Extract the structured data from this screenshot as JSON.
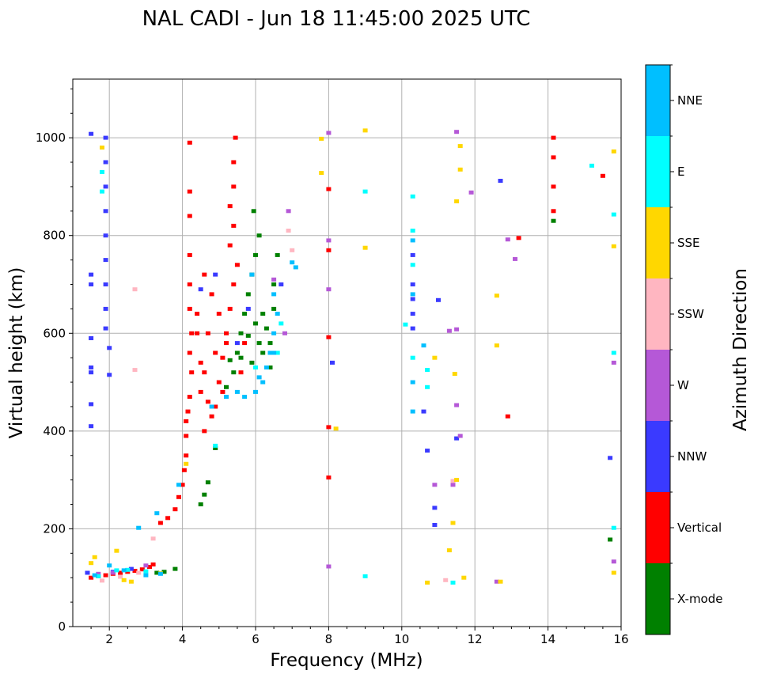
{
  "chart_data": {
    "type": "scatter",
    "title": "NAL CADI - Jun 18 11:45:00 2025 UTC",
    "xlabel": "Frequency (MHz)",
    "ylabel": "Virtual height (km)",
    "xlim": [
      1,
      16
    ],
    "ylim": [
      0,
      1120
    ],
    "xticks": [
      2,
      4,
      6,
      8,
      10,
      12,
      14,
      16
    ],
    "yticks": [
      0,
      200,
      400,
      600,
      800,
      1000
    ],
    "grid": true,
    "colorbar": {
      "label": "Azimuth Direction",
      "categories": [
        {
          "name": "X-mode",
          "color": "#008000"
        },
        {
          "name": "Vertical",
          "color": "#ff0000"
        },
        {
          "name": "NNW",
          "color": "#3a3aff"
        },
        {
          "name": "W",
          "color": "#b558d7"
        },
        {
          "name": "SSW",
          "color": "#ffb6c1"
        },
        {
          "name": "SSE",
          "color": "#ffd700"
        },
        {
          "name": "E",
          "color": "#00ffff"
        },
        {
          "name": "NNE",
          "color": "#00bfff"
        }
      ]
    },
    "series": [
      {
        "name": "X-mode",
        "points": [
          [
            3.3,
            110
          ],
          [
            3.5,
            112
          ],
          [
            3.8,
            118
          ],
          [
            4.5,
            250
          ],
          [
            4.6,
            270
          ],
          [
            4.7,
            295
          ],
          [
            4.9,
            365
          ],
          [
            5.2,
            490
          ],
          [
            5.4,
            520
          ],
          [
            5.5,
            560
          ],
          [
            5.6,
            600
          ],
          [
            5.7,
            640
          ],
          [
            5.8,
            680
          ],
          [
            5.9,
            720
          ],
          [
            6.0,
            760
          ],
          [
            6.1,
            800
          ],
          [
            6.2,
            640
          ],
          [
            6.3,
            610
          ],
          [
            6.4,
            580
          ],
          [
            6.5,
            700
          ],
          [
            6.6,
            760
          ],
          [
            5.9,
            540
          ],
          [
            6.1,
            580
          ],
          [
            5.3,
            545
          ],
          [
            5.6,
            550
          ],
          [
            5.8,
            595
          ],
          [
            6.0,
            620
          ],
          [
            6.2,
            560
          ],
          [
            6.5,
            650
          ],
          [
            6.4,
            530
          ],
          [
            5.95,
            850
          ],
          [
            14.15,
            830
          ],
          [
            15.7,
            178
          ]
        ]
      },
      {
        "name": "Vertical",
        "points": [
          [
            1.5,
            100
          ],
          [
            1.7,
            103
          ],
          [
            1.9,
            105
          ],
          [
            2.1,
            108
          ],
          [
            2.3,
            110
          ],
          [
            2.5,
            112
          ],
          [
            2.7,
            114
          ],
          [
            2.9,
            117
          ],
          [
            3.1,
            122
          ],
          [
            3.2,
            127
          ],
          [
            3.4,
            212
          ],
          [
            3.6,
            222
          ],
          [
            3.8,
            240
          ],
          [
            3.9,
            265
          ],
          [
            4.0,
            290
          ],
          [
            4.05,
            320
          ],
          [
            4.1,
            350
          ],
          [
            4.1,
            390
          ],
          [
            4.1,
            420
          ],
          [
            4.15,
            440
          ],
          [
            4.2,
            470
          ],
          [
            4.25,
            520
          ],
          [
            4.2,
            560
          ],
          [
            4.25,
            600
          ],
          [
            4.2,
            650
          ],
          [
            4.2,
            700
          ],
          [
            4.2,
            760
          ],
          [
            4.2,
            840
          ],
          [
            4.2,
            890
          ],
          [
            4.2,
            990
          ],
          [
            4.4,
            600
          ],
          [
            4.5,
            480
          ],
          [
            4.6,
            520
          ],
          [
            4.7,
            460
          ],
          [
            4.8,
            430
          ],
          [
            4.9,
            450
          ],
          [
            5.0,
            500
          ],
          [
            5.1,
            550
          ],
          [
            5.2,
            600
          ],
          [
            5.3,
            650
          ],
          [
            5.4,
            700
          ],
          [
            5.5,
            740
          ],
          [
            5.3,
            780
          ],
          [
            5.4,
            820
          ],
          [
            5.3,
            860
          ],
          [
            5.4,
            900
          ],
          [
            5.4,
            950
          ],
          [
            5.45,
            1000
          ],
          [
            4.6,
            720
          ],
          [
            4.8,
            680
          ],
          [
            5.0,
            640
          ],
          [
            5.2,
            580
          ],
          [
            4.9,
            560
          ],
          [
            5.1,
            480
          ],
          [
            4.5,
            540
          ],
          [
            4.4,
            640
          ],
          [
            4.7,
            600
          ],
          [
            5.6,
            520
          ],
          [
            5.7,
            580
          ],
          [
            4.6,
            400
          ],
          [
            8.0,
            305
          ],
          [
            8.0,
            408
          ],
          [
            8.0,
            592
          ],
          [
            8.0,
            895
          ],
          [
            8.0,
            770
          ],
          [
            12.9,
            430
          ],
          [
            13.2,
            795
          ],
          [
            14.15,
            850
          ],
          [
            14.15,
            900
          ],
          [
            14.15,
            960
          ],
          [
            14.15,
            1000
          ],
          [
            15.5,
            922
          ]
        ]
      },
      {
        "name": "NNW",
        "points": [
          [
            1.5,
            1008
          ],
          [
            1.5,
            720
          ],
          [
            1.5,
            700
          ],
          [
            1.5,
            590
          ],
          [
            1.5,
            530
          ],
          [
            1.5,
            520
          ],
          [
            1.5,
            455
          ],
          [
            1.5,
            410
          ],
          [
            1.9,
            1000
          ],
          [
            1.9,
            950
          ],
          [
            1.9,
            900
          ],
          [
            1.9,
            850
          ],
          [
            1.9,
            800
          ],
          [
            1.9,
            750
          ],
          [
            1.9,
            700
          ],
          [
            1.9,
            650
          ],
          [
            1.9,
            610
          ],
          [
            2.0,
            570
          ],
          [
            2.0,
            515
          ],
          [
            1.4,
            110
          ],
          [
            2.1,
            112
          ],
          [
            2.6,
            118
          ],
          [
            4.5,
            690
          ],
          [
            4.9,
            720
          ],
          [
            5.5,
            580
          ],
          [
            5.8,
            650
          ],
          [
            6.7,
            700
          ],
          [
            8.1,
            540
          ],
          [
            10.3,
            760
          ],
          [
            10.3,
            700
          ],
          [
            10.3,
            670
          ],
          [
            10.3,
            640
          ],
          [
            10.3,
            610
          ],
          [
            10.6,
            440
          ],
          [
            10.7,
            360
          ],
          [
            10.9,
            243
          ],
          [
            10.9,
            208
          ],
          [
            11.0,
            668
          ],
          [
            11.5,
            385
          ],
          [
            12.7,
            912
          ],
          [
            15.7,
            345
          ]
        ]
      },
      {
        "name": "W",
        "points": [
          [
            1.7,
            108
          ],
          [
            2.1,
            110
          ],
          [
            3.0,
            125
          ],
          [
            6.5,
            710
          ],
          [
            6.8,
            600
          ],
          [
            6.9,
            850
          ],
          [
            8.0,
            1010
          ],
          [
            8.0,
            690
          ],
          [
            8.0,
            790
          ],
          [
            8.0,
            123
          ],
          [
            10.9,
            290
          ],
          [
            11.3,
            605
          ],
          [
            11.5,
            608
          ],
          [
            11.5,
            453
          ],
          [
            11.5,
            1012
          ],
          [
            11.6,
            390
          ],
          [
            11.4,
            290
          ],
          [
            11.9,
            888
          ],
          [
            12.6,
            92
          ],
          [
            12.9,
            792
          ],
          [
            13.1,
            752
          ],
          [
            15.8,
            540
          ],
          [
            15.8,
            133
          ]
        ]
      },
      {
        "name": "SSW",
        "points": [
          [
            1.8,
            94
          ],
          [
            2.3,
            102
          ],
          [
            2.8,
            110
          ],
          [
            6.9,
            810
          ],
          [
            7.0,
            770
          ],
          [
            11.2,
            95
          ],
          [
            11.4,
            298
          ],
          [
            2.7,
            690
          ],
          [
            2.7,
            525
          ],
          [
            3.2,
            180
          ]
        ]
      },
      {
        "name": "SSE",
        "points": [
          [
            1.5,
            130
          ],
          [
            1.6,
            142
          ],
          [
            2.2,
            155
          ],
          [
            2.4,
            95
          ],
          [
            2.6,
            92
          ],
          [
            1.8,
            980
          ],
          [
            3.4,
            109
          ],
          [
            4.1,
            333
          ],
          [
            7.8,
            998
          ],
          [
            7.8,
            928
          ],
          [
            8.2,
            405
          ],
          [
            9.0,
            1015
          ],
          [
            9.0,
            775
          ],
          [
            10.7,
            90
          ],
          [
            10.9,
            550
          ],
          [
            11.3,
            156
          ],
          [
            11.4,
            212
          ],
          [
            11.45,
            517
          ],
          [
            11.5,
            300
          ],
          [
            11.5,
            870
          ],
          [
            11.6,
            935
          ],
          [
            11.6,
            983
          ],
          [
            11.7,
            100
          ],
          [
            12.6,
            575
          ],
          [
            12.6,
            677
          ],
          [
            12.7,
            92
          ],
          [
            15.8,
            972
          ],
          [
            15.8,
            778
          ],
          [
            15.8,
            110
          ]
        ]
      },
      {
        "name": "E",
        "points": [
          [
            1.8,
            930
          ],
          [
            1.8,
            890
          ],
          [
            1.7,
            103
          ],
          [
            2.2,
            115
          ],
          [
            2.5,
            116
          ],
          [
            3.0,
            113
          ],
          [
            4.9,
            370
          ],
          [
            6.0,
            530
          ],
          [
            6.6,
            560
          ],
          [
            6.7,
            620
          ],
          [
            9.0,
            890
          ],
          [
            9.0,
            103
          ],
          [
            10.1,
            618
          ],
          [
            10.3,
            880
          ],
          [
            10.3,
            810
          ],
          [
            10.3,
            740
          ],
          [
            10.3,
            550
          ],
          [
            10.7,
            490
          ],
          [
            10.7,
            525
          ],
          [
            11.4,
            90
          ],
          [
            15.2,
            943
          ],
          [
            15.8,
            843
          ],
          [
            15.8,
            560
          ],
          [
            15.8,
            202
          ]
        ]
      },
      {
        "name": "NNE",
        "points": [
          [
            1.6,
            105
          ],
          [
            2.0,
            125
          ],
          [
            2.4,
            115
          ],
          [
            3.0,
            105
          ],
          [
            3.4,
            108
          ],
          [
            2.8,
            202
          ],
          [
            3.3,
            232
          ],
          [
            3.9,
            290
          ],
          [
            4.8,
            450
          ],
          [
            5.2,
            470
          ],
          [
            5.5,
            480
          ],
          [
            5.7,
            470
          ],
          [
            6.0,
            480
          ],
          [
            6.2,
            500
          ],
          [
            6.3,
            530
          ],
          [
            6.4,
            560
          ],
          [
            6.5,
            600
          ],
          [
            6.6,
            640
          ],
          [
            6.5,
            680
          ],
          [
            6.1,
            510
          ],
          [
            5.9,
            720
          ],
          [
            6.5,
            560
          ],
          [
            7.0,
            745
          ],
          [
            7.1,
            735
          ],
          [
            10.3,
            790
          ],
          [
            10.3,
            680
          ],
          [
            10.3,
            500
          ],
          [
            10.3,
            440
          ],
          [
            10.6,
            575
          ]
        ]
      }
    ]
  }
}
